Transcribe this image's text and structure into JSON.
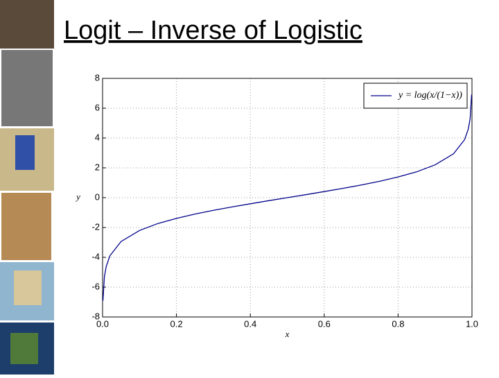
{
  "chart_data": {
    "type": "line",
    "title": "Logit – Inverse of Logistic",
    "x_label": "x",
    "y_label": "y",
    "x": [
      0.001,
      0.005,
      0.01,
      0.02,
      0.05,
      0.1,
      0.15,
      0.2,
      0.25,
      0.3,
      0.35,
      0.4,
      0.45,
      0.5,
      0.55,
      0.6,
      0.65,
      0.7,
      0.75,
      0.8,
      0.85,
      0.9,
      0.95,
      0.98,
      0.99,
      0.995,
      0.999
    ],
    "series": [
      {
        "name": "y = log(x/(1−x))",
        "color": "#00008b",
        "values": [
          -6.91,
          -5.29,
          -4.6,
          -3.89,
          -2.94,
          -2.2,
          -1.73,
          -1.39,
          -1.1,
          -0.85,
          -0.62,
          -0.41,
          -0.2,
          0,
          0.2,
          0.41,
          0.62,
          0.85,
          1.1,
          1.39,
          1.73,
          2.2,
          2.94,
          3.89,
          4.6,
          5.29,
          6.91
        ]
      }
    ],
    "xlim": [
      0,
      1
    ],
    "ylim": [
      -8,
      8
    ],
    "xticks": [
      {
        "value": 0,
        "label": "0.0"
      },
      {
        "value": 0.2,
        "label": "0.2"
      },
      {
        "value": 0.4,
        "label": "0.4"
      },
      {
        "value": 0.6,
        "label": "0.6"
      },
      {
        "value": 0.8,
        "label": "0.8"
      },
      {
        "value": 1,
        "label": "1.0"
      }
    ],
    "yticks": [
      -8,
      -6,
      -4,
      -2,
      0,
      2,
      4,
      6,
      8
    ],
    "grid": true,
    "legend": "upper right"
  }
}
